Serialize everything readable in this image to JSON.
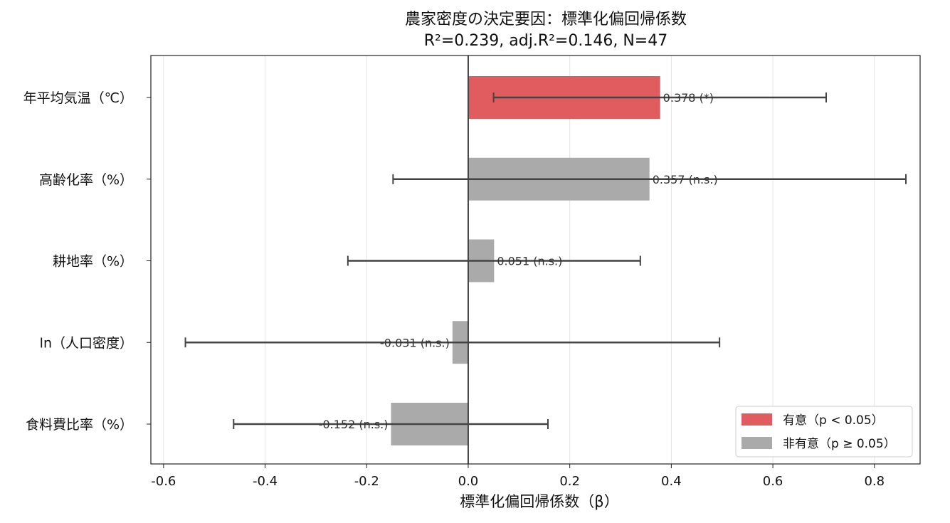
{
  "chart_data": {
    "type": "bar",
    "orientation": "horizontal",
    "title": "農家密度の決定要因：標準化偏回帰係数",
    "subtitle": "R²=0.239, adj.R²=0.146, N=47",
    "xlabel": "標準化偏回帰係数（β）",
    "ylabel": "",
    "xlim": [
      -0.625,
      0.89
    ],
    "xticks": [
      -0.6,
      -0.4,
      -0.2,
      0.0,
      0.2,
      0.4,
      0.6,
      0.8
    ],
    "xtick_labels": [
      "-0.6",
      "-0.4",
      "-0.2",
      "0.0",
      "0.2",
      "0.4",
      "0.6",
      "0.8"
    ],
    "grid": "x",
    "categories": [
      "年平均気温（℃）",
      "高齢化率（%）",
      "耕地率（%）",
      "ln（人口密度）",
      "食料費比率（%）"
    ],
    "values": [
      0.378,
      0.357,
      0.051,
      -0.031,
      -0.152
    ],
    "ci_low": [
      0.05,
      -0.148,
      -0.237,
      -0.557,
      -0.462
    ],
    "ci_high": [
      0.705,
      0.862,
      0.339,
      0.495,
      0.157
    ],
    "significant": [
      true,
      false,
      false,
      false,
      false
    ],
    "data_labels": [
      "0.378 (*)",
      "0.357 (n.s.)",
      "0.051 (n.s.)",
      "-0.031 (n.s.)",
      "-0.152 (n.s.)"
    ],
    "legend": {
      "placement": "lower-right",
      "entries": [
        {
          "label": "有意（p < 0.05）",
          "color": "#e05c5f"
        },
        {
          "label": "非有意（p ≥ 0.05）",
          "color": "#aaaaaa"
        }
      ]
    },
    "colors": {
      "significant": "#e05c5f",
      "not_significant": "#aaaaaa",
      "errorbar": "#444444",
      "zero_line": "#444444"
    }
  }
}
